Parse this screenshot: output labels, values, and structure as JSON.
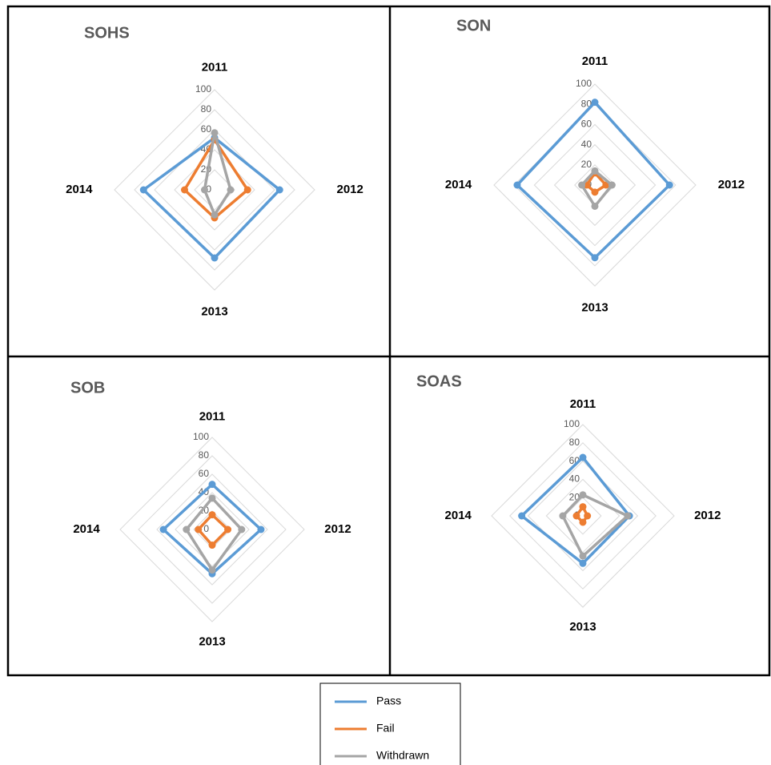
{
  "chart_data": [
    {
      "type": "radar",
      "title": "SOHS",
      "categories": [
        "2011",
        "2012",
        "2013",
        "2014"
      ],
      "series": [
        {
          "name": "Pass",
          "color": "#5b9bd5",
          "values": [
            52,
            65,
            68,
            71
          ]
        },
        {
          "name": "Fail",
          "color": "#ed7d31",
          "values": [
            50,
            33,
            28,
            30
          ]
        },
        {
          "name": "Withdrawn",
          "color": "#a5a5a5",
          "values": [
            57,
            16,
            25,
            10
          ]
        }
      ],
      "rlim": [
        0,
        100
      ],
      "rticks": [
        0,
        20,
        40,
        60,
        80,
        100
      ],
      "grid": true
    },
    {
      "type": "radar",
      "title": "SON",
      "categories": [
        "2011",
        "2012",
        "2013",
        "2014"
      ],
      "series": [
        {
          "name": "Pass",
          "color": "#5b9bd5",
          "values": [
            82,
            74,
            72,
            77
          ]
        },
        {
          "name": "Fail",
          "color": "#ed7d31",
          "values": [
            12,
            11,
            7,
            8
          ]
        },
        {
          "name": "Withdrawn",
          "color": "#a5a5a5",
          "values": [
            14,
            17,
            21,
            13
          ]
        }
      ],
      "rlim": [
        0,
        100
      ],
      "rticks": [
        0,
        20,
        40,
        60,
        80,
        100
      ],
      "grid": true
    },
    {
      "type": "radar",
      "title": "SOB",
      "categories": [
        "2011",
        "2012",
        "2013",
        "2014"
      ],
      "series": [
        {
          "name": "Pass",
          "color": "#5b9bd5",
          "values": [
            49,
            53,
            48,
            53
          ]
        },
        {
          "name": "Fail",
          "color": "#ed7d31",
          "values": [
            16,
            17,
            17,
            15
          ]
        },
        {
          "name": "Withdrawn",
          "color": "#a5a5a5",
          "values": [
            34,
            32,
            44,
            28
          ]
        }
      ],
      "rlim": [
        0,
        100
      ],
      "rticks": [
        0,
        20,
        40,
        60,
        80,
        100
      ],
      "grid": true
    },
    {
      "type": "radar",
      "title": "SOAS",
      "categories": [
        "2011",
        "2012",
        "2013",
        "2014"
      ],
      "series": [
        {
          "name": "Pass",
          "color": "#5b9bd5",
          "values": [
            64,
            51,
            52,
            67
          ]
        },
        {
          "name": "Fail",
          "color": "#ed7d31",
          "values": [
            10,
            5,
            7,
            7
          ]
        },
        {
          "name": "Withdrawn",
          "color": "#a5a5a5",
          "values": [
            23,
            49,
            44,
            22
          ]
        }
      ],
      "rlim": [
        0,
        100
      ],
      "rticks": [
        0,
        20,
        40,
        60,
        80,
        100
      ],
      "grid": true
    }
  ]
}
